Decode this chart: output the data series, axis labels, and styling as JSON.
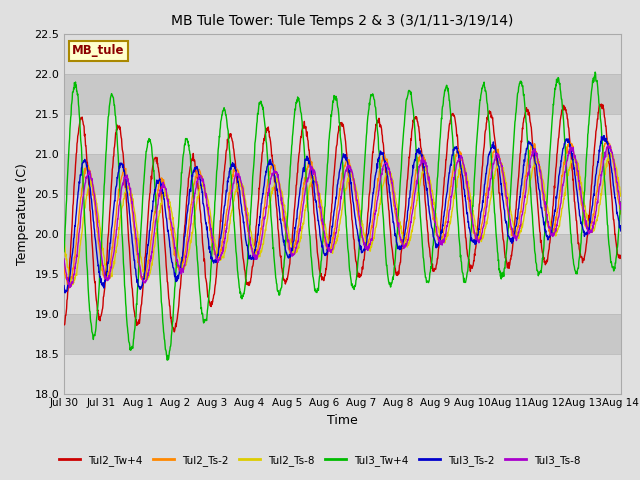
{
  "title": "MB Tule Tower: Tule Temps 2 & 3 (3/1/11-3/19/14)",
  "xlabel": "Time",
  "ylabel": "Temperature (C)",
  "ylim": [
    18.0,
    22.5
  ],
  "yticks": [
    18.0,
    18.5,
    19.0,
    19.5,
    20.0,
    20.5,
    21.0,
    21.5,
    22.0,
    22.5
  ],
  "x_labels": [
    "Jul 30",
    "Jul 31",
    "Aug 1",
    "Aug 2",
    "Aug 3",
    "Aug 4",
    "Aug 5",
    "Aug 6",
    "Aug 7",
    "Aug 8",
    "Aug 9",
    "Aug 10",
    "Aug 11",
    "Aug 12",
    "Aug 13",
    "Aug 14"
  ],
  "annotation_text": "MB_tule",
  "fig_bg": "#e0e0e0",
  "plot_bg": "#d4d4d4",
  "band_light": "#dedede",
  "band_dark": "#c8c8c8",
  "series": [
    {
      "label": "Tul2_Tw+4",
      "color": "#cc0000"
    },
    {
      "label": "Tul2_Ts-2",
      "color": "#ff8800"
    },
    {
      "label": "Tul2_Ts-8",
      "color": "#ddcc00"
    },
    {
      "label": "Tul3_Tw+4",
      "color": "#00bb00"
    },
    {
      "label": "Tul3_Ts-2",
      "color": "#0000cc"
    },
    {
      "label": "Tul3_Ts-8",
      "color": "#aa00cc"
    }
  ]
}
